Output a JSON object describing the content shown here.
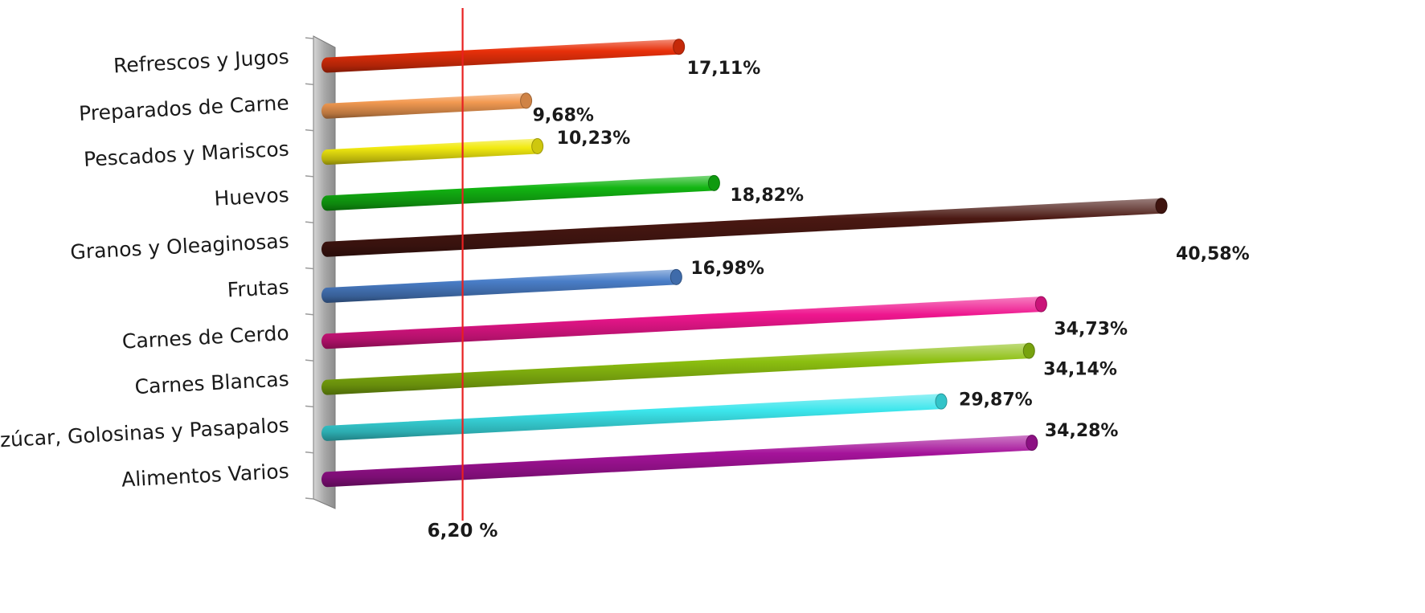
{
  "chart_data": {
    "type": "bar",
    "orientation": "horizontal",
    "style": "3d-cylinder",
    "categories": [
      "Refrescos y Jugos",
      "Preparados de Carne",
      "Pescados y Mariscos",
      "Huevos",
      "Granos y Oleaginosas",
      "Frutas",
      "Carnes de Cerdo",
      "Carnes Blancas",
      "Azúcar, Golosinas y Pasapalos",
      "Alimentos Varios"
    ],
    "values": [
      17.11,
      9.68,
      10.23,
      18.82,
      40.58,
      16.98,
      34.73,
      34.14,
      29.87,
      34.28
    ],
    "value_labels": [
      "17,11%",
      "9,68%",
      "10,23%",
      "18,82%",
      "40,58%",
      "16,98%",
      "34,73%",
      "34,14%",
      "29,87%",
      "34,28%"
    ],
    "colors": [
      "#e8300a",
      "#f39a52",
      "#f2ea10",
      "#12b512",
      "#4a1812",
      "#4a7ec8",
      "#ee168e",
      "#8cbf10",
      "#3ce6ec",
      "#a5139a"
    ],
    "reference_line": {
      "value": 6.2,
      "label": "6,20 %",
      "color": "#e82020"
    },
    "xlim": [
      0,
      40.58
    ],
    "title": "",
    "xlabel": "",
    "ylabel": ""
  }
}
